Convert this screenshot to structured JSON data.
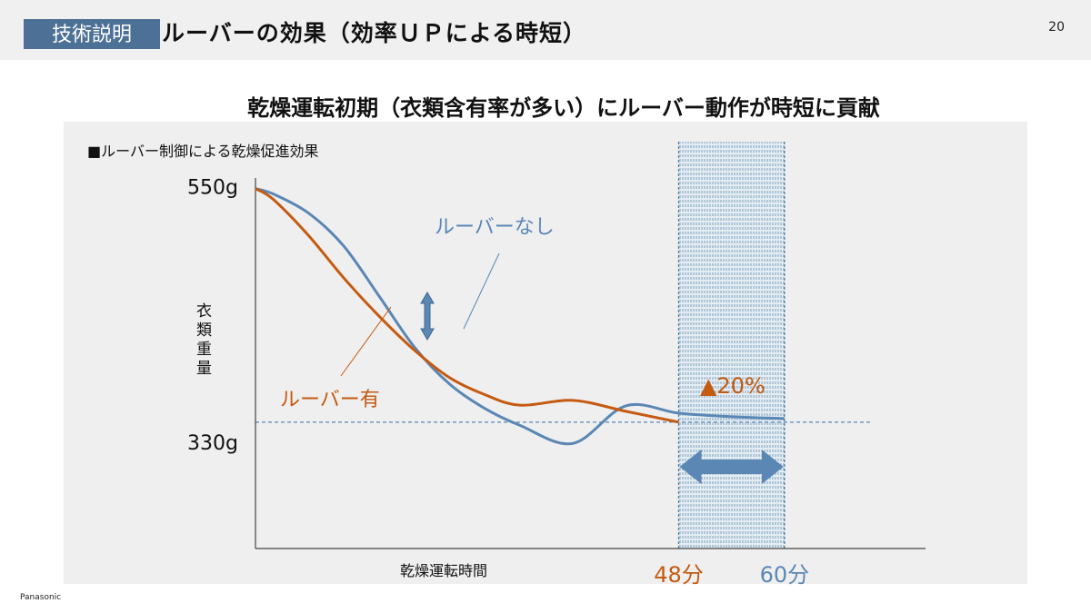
{
  "header": {
    "tag": "技術説明",
    "title": "ルーバーの効果（効率ＵＰによる時短）",
    "page_number": "20"
  },
  "subtitle": "乾燥運転初期（衣類含有率が多い）にルーバー動作が時短に貢献",
  "footer": {
    "brand": "Panasonic"
  },
  "colors": {
    "accent": "#4d7196",
    "louver_on": "#c55a11",
    "louver_off": "#5b87b5"
  },
  "chart_data": {
    "type": "line",
    "title": "■ルーバー制御による乾燥促進効果",
    "xlabel": "乾燥運転時間",
    "ylabel": "衣類重量",
    "y_ticks": [
      "550g",
      "330g"
    ],
    "y_tick_values": [
      550,
      330
    ],
    "x_ticks": [
      "48分",
      "60分"
    ],
    "x_tick_values": [
      48,
      60
    ],
    "xlim": [
      0,
      76
    ],
    "ylim": [
      211,
      560
    ],
    "series": [
      {
        "name": "ルーバーなし",
        "color": "#5b87b5",
        "x": [
          0,
          2,
          6,
          10,
          14,
          18,
          22,
          26,
          30,
          36,
          42,
          48,
          54,
          60
        ],
        "y": [
          550,
          545,
          527,
          496,
          449,
          401,
          366,
          343,
          327,
          310,
          299,
          334,
          332,
          330
        ]
      },
      {
        "name": "ルーバー有",
        "color": "#c55a11",
        "x": [
          0,
          2,
          6,
          10,
          14,
          18,
          22,
          26,
          30,
          36,
          42,
          48
        ],
        "y": [
          550,
          540,
          506,
          466,
          430,
          398,
          372,
          356,
          346,
          339,
          334,
          330
        ]
      }
    ],
    "reduction_label": "▲20%"
  }
}
